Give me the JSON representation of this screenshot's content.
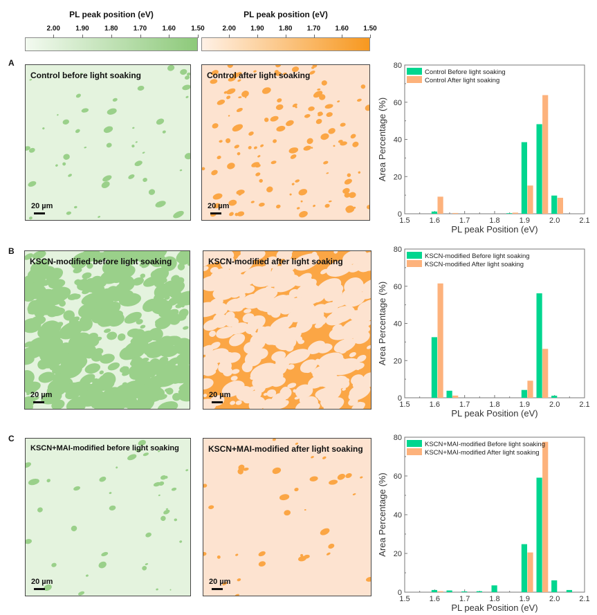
{
  "colorbars": [
    {
      "title": "PL peak position (eV)",
      "ticks": [
        "2.00",
        "1.90",
        "1.80",
        "1.70",
        "1.60",
        "1.50"
      ],
      "color_low": "#f3faf0",
      "color_high": "#8dc97a"
    },
    {
      "title": "PL peak position (eV)",
      "ticks": [
        "2.00",
        "1.90",
        "1.80",
        "1.70",
        "1.60",
        "1.50"
      ],
      "color_low": "#fff1e6",
      "color_high": "#f7981f"
    }
  ],
  "colors": {
    "green_bar": "#00d68f",
    "orange_bar": "#fdb27c",
    "map_green_bg": "#e4f3de",
    "map_green_spot": "#9ad08a",
    "map_orange_bg": "#fde3d0",
    "map_orange_spot": "#fba645"
  },
  "rows": [
    {
      "letter": "A",
      "maps": [
        {
          "title": "Control before light soaking",
          "scale": "20 µm",
          "tone": "green",
          "coverage": 0.02
        },
        {
          "title": "Control after light soaking",
          "scale": "20 µm",
          "tone": "orange",
          "coverage": 0.1
        }
      ]
    },
    {
      "letter": "B",
      "maps": [
        {
          "title": "KSCN-modified before light soaking",
          "scale": "20 µm",
          "tone": "green",
          "coverage": 0.4
        },
        {
          "title": "KSCN-modified after light soaking",
          "scale": "20 µm",
          "tone": "orange",
          "coverage": 0.65
        }
      ]
    },
    {
      "letter": "C",
      "maps": [
        {
          "title": "KSCN+MAI-modified before light soaking",
          "scale": "20 µm",
          "tone": "green",
          "coverage": 0.01
        },
        {
          "title": "KSCN+MAI-modified after light soaking",
          "scale": "20 µm",
          "tone": "orange",
          "coverage": 0.005
        }
      ]
    }
  ],
  "chart_data": [
    {
      "type": "bar",
      "xlabel": "PL peak Position (eV)",
      "ylabel": "Area Percentage (%)",
      "xlim": [
        1.5,
        2.1
      ],
      "ylim": [
        0,
        80
      ],
      "xticks": [
        "1.5",
        "1.6",
        "1.7",
        "1.8",
        "1.9",
        "2.0",
        "2.1"
      ],
      "yticks": [
        "0",
        "20",
        "40",
        "60",
        "80"
      ],
      "legend": "top-left",
      "x": [
        1.6,
        1.65,
        1.7,
        1.75,
        1.8,
        1.85,
        1.9,
        1.95,
        2.0,
        2.05
      ],
      "series": [
        {
          "name": "Control Before light soaking",
          "values": [
            1.2,
            0,
            0,
            0,
            0,
            0.3,
            38.5,
            48.2,
            9.8,
            0
          ]
        },
        {
          "name": "Control After light soaking",
          "values": [
            9.2,
            0.4,
            0,
            0,
            0,
            0.6,
            15.2,
            63.8,
            8.6,
            0
          ]
        }
      ]
    },
    {
      "type": "bar",
      "xlabel": "PL peak Position (eV)",
      "ylabel": "Area Percentage (%)",
      "xlim": [
        1.5,
        2.1
      ],
      "ylim": [
        0,
        80
      ],
      "xticks": [
        "1.5",
        "1.6",
        "1.7",
        "1.8",
        "1.9",
        "2.0",
        "2.1"
      ],
      "yticks": [
        "0",
        "20",
        "40",
        "60",
        "80"
      ],
      "legend": "top-left",
      "x": [
        1.6,
        1.65,
        1.7,
        1.75,
        1.8,
        1.85,
        1.9,
        1.95,
        2.0,
        2.05
      ],
      "series": [
        {
          "name": "KSCN-modified Before light soaking",
          "values": [
            32.6,
            3.8,
            0,
            0,
            0,
            0,
            4.2,
            56.2,
            1.1,
            0
          ]
        },
        {
          "name": "KSCN-modified After light soaking",
          "values": [
            61.5,
            1.2,
            0,
            0,
            0,
            0,
            9.2,
            26.3,
            0,
            0
          ]
        }
      ]
    },
    {
      "type": "bar",
      "xlabel": "PL peak Position (eV)",
      "ylabel": "Area Percentage (%)",
      "xlim": [
        1.5,
        2.1
      ],
      "ylim": [
        0,
        80
      ],
      "xticks": [
        "1.5",
        "1.6",
        "1.7",
        "1.8",
        "1.9",
        "2.0",
        "2.1"
      ],
      "yticks": [
        "0",
        "20",
        "40",
        "60",
        "80"
      ],
      "legend": "top-left",
      "x": [
        1.6,
        1.65,
        1.7,
        1.75,
        1.8,
        1.85,
        1.9,
        1.95,
        2.0,
        2.05
      ],
      "series": [
        {
          "name": "KSCN+MAI-modified Before light soaking",
          "values": [
            1.1,
            0.9,
            0.4,
            0.5,
            3.5,
            0,
            24.8,
            59.1,
            6.1,
            1.1
          ]
        },
        {
          "name": "KSCN+MAI-modified After light soaking",
          "values": [
            0.5,
            0,
            0,
            0,
            0,
            0,
            20.5,
            77.6,
            0,
            0
          ]
        }
      ]
    }
  ]
}
